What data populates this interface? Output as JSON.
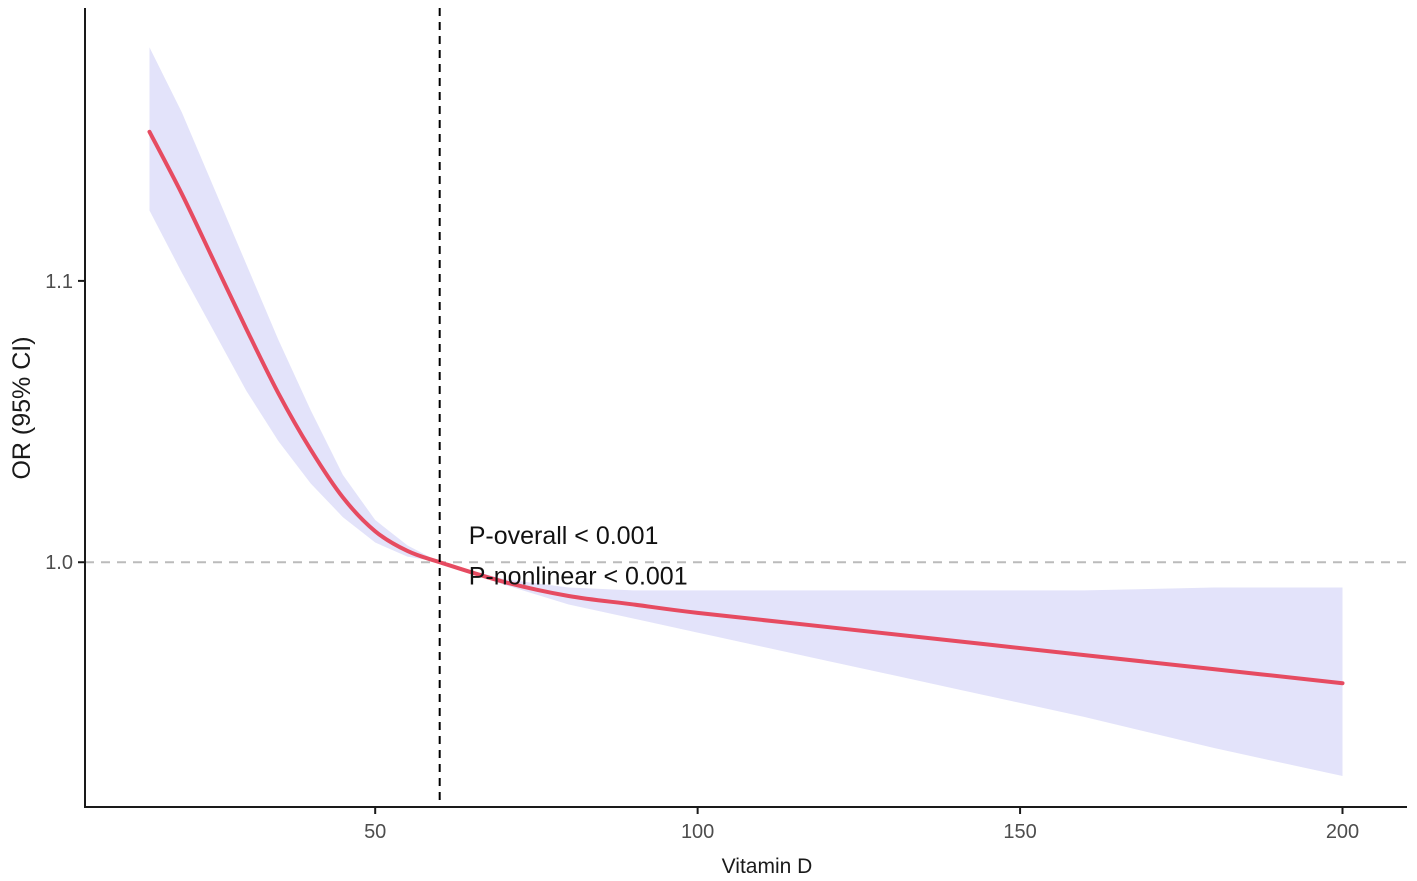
{
  "chart_data": {
    "type": "line",
    "title": "",
    "xlabel": "Vitamin D",
    "ylabel": "OR (95% CI)",
    "xlim": [
      5,
      210
    ],
    "ylim": [
      0.913,
      1.197
    ],
    "x_ticks": [
      50,
      100,
      150,
      200
    ],
    "x_tick_labels": [
      "50",
      "100",
      "150",
      "200"
    ],
    "y_ticks": [
      1.0,
      1.1
    ],
    "y_tick_labels": [
      "1.0",
      "1.1"
    ],
    "reference_lines": {
      "horizontal_y": 1.0,
      "vertical_x": 60
    },
    "grid": false,
    "legend": "none",
    "series": [
      {
        "x": [
          15,
          20,
          25,
          30,
          35,
          40,
          45,
          50,
          55,
          60,
          70,
          80,
          90,
          100,
          120,
          140,
          160,
          180,
          200
        ],
        "y": [
          1.153,
          1.131,
          1.107,
          1.083,
          1.06,
          1.04,
          1.023,
          1.011,
          1.004,
          1.0,
          0.993,
          0.988,
          0.985,
          0.982,
          0.977,
          0.972,
          0.967,
          0.962,
          0.957
        ],
        "y_lower": [
          1.125,
          1.103,
          1.082,
          1.061,
          1.043,
          1.028,
          1.016,
          1.007,
          1.002,
          1.0,
          0.992,
          0.985,
          0.98,
          0.975,
          0.965,
          0.955,
          0.945,
          0.934,
          0.924
        ],
        "y_upper": [
          1.183,
          1.16,
          1.133,
          1.106,
          1.079,
          1.054,
          1.031,
          1.015,
          1.006,
          1.0,
          0.994,
          0.991,
          0.99,
          0.99,
          0.99,
          0.99,
          0.99,
          0.991,
          0.991
        ],
        "line_color": "#e64b61",
        "ci_color": "#e3e3fa"
      }
    ],
    "annotations": [
      {
        "text": "P-overall < 0.001",
        "x": 64.5,
        "y": 1.0065
      },
      {
        "text": "P-nonlinear < 0.001",
        "x": 64.5,
        "y": 0.992
      }
    ],
    "colors": {
      "axis": "#1a1a1a",
      "refline_h": "#bbbbbb",
      "refline_v": "#000000"
    }
  }
}
